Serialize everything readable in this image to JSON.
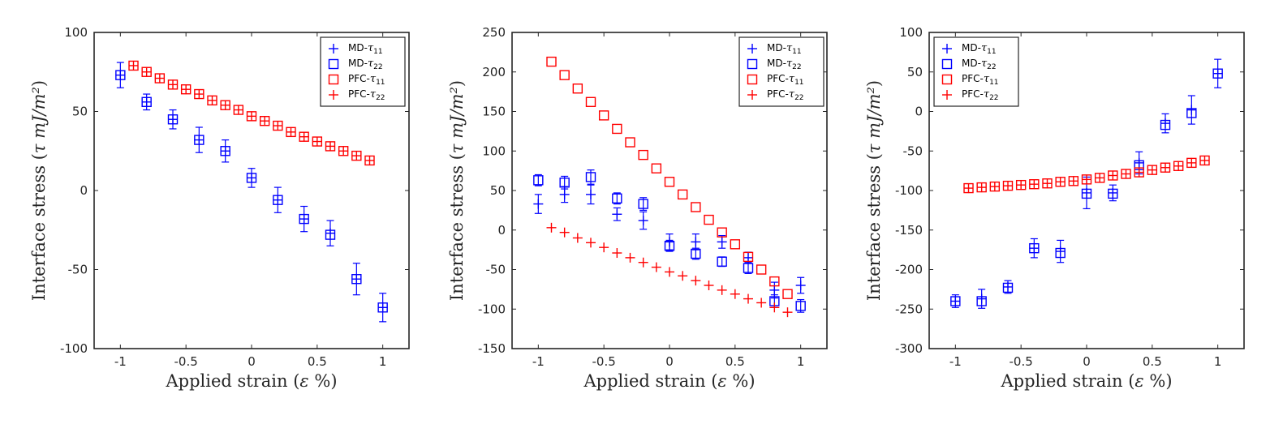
{
  "chart_data": [
    {
      "type": "scatter",
      "panel": "left",
      "xlabel": "Applied strain (ε %)",
      "ylabel": "Interface stress (τ mJ/m²)",
      "xlim": [
        -1.2,
        1.2
      ],
      "ylim": [
        -100,
        100
      ],
      "xticks": [
        -1,
        -0.5,
        0,
        0.5,
        1
      ],
      "xtick_labels": [
        "-1",
        "-0.5",
        "0",
        "0.5",
        "1"
      ],
      "yticks": [
        -100,
        -50,
        0,
        50,
        100
      ],
      "ytick_labels": [
        "-100",
        "-50",
        "0",
        "50",
        "100"
      ],
      "legend": {
        "position": "top-right",
        "entries": [
          {
            "prefix": "MD-",
            "sym": "τ",
            "sub": "11",
            "marker": "plus",
            "color": "#0000ff"
          },
          {
            "prefix": "MD-",
            "sym": "τ",
            "sub": "22",
            "marker": "square",
            "color": "#0000ff"
          },
          {
            "prefix": "PFC-",
            "sym": "τ",
            "sub": "11",
            "marker": "square",
            "color": "#ff0000"
          },
          {
            "prefix": "PFC-",
            "sym": "τ",
            "sub": "22",
            "marker": "plus",
            "color": "#ff0000"
          }
        ]
      },
      "series": [
        {
          "name": "MD-τ11",
          "marker": "plus",
          "color": "#0000ff",
          "x": [
            -1,
            -0.8,
            -0.6,
            -0.4,
            -0.2,
            0,
            0.2,
            0.4,
            0.6,
            0.8,
            1
          ],
          "y": [
            73,
            56,
            45,
            32,
            25,
            8,
            -6,
            -18,
            -27,
            -56,
            -74
          ],
          "err": [
            8,
            5,
            6,
            8,
            7,
            6,
            8,
            8,
            8,
            10,
            9
          ]
        },
        {
          "name": "MD-τ22",
          "marker": "square",
          "color": "#0000ff",
          "x": [
            -1,
            -0.8,
            -0.6,
            -0.4,
            -0.2,
            0,
            0.2,
            0.4,
            0.6,
            0.8,
            1
          ],
          "y": [
            73,
            56,
            45,
            32,
            25,
            8,
            -6,
            -18,
            -28,
            -56,
            -74
          ]
        },
        {
          "name": "PFC-τ11",
          "marker": "square",
          "color": "#ff0000",
          "x": [
            -0.9,
            -0.8,
            -0.7,
            -0.6,
            -0.5,
            -0.4,
            -0.3,
            -0.2,
            -0.1,
            0,
            0.1,
            0.2,
            0.3,
            0.4,
            0.5,
            0.6,
            0.7,
            0.8,
            0.9
          ],
          "y": [
            79,
            75,
            71,
            67,
            64,
            61,
            57,
            54,
            51,
            47,
            44,
            41,
            37,
            34,
            31,
            28,
            25,
            22,
            19
          ]
        },
        {
          "name": "PFC-τ22",
          "marker": "plus",
          "color": "#ff0000",
          "x": [
            -0.9,
            -0.8,
            -0.7,
            -0.6,
            -0.5,
            -0.4,
            -0.3,
            -0.2,
            -0.1,
            0,
            0.1,
            0.2,
            0.3,
            0.4,
            0.5,
            0.6,
            0.7,
            0.8,
            0.9
          ],
          "y": [
            79,
            75,
            71,
            67,
            64,
            61,
            57,
            54,
            51,
            47,
            44,
            41,
            37,
            34,
            31,
            28,
            25,
            22,
            19
          ]
        }
      ]
    },
    {
      "type": "scatter",
      "panel": "middle",
      "xlabel": "Applied strain (ε %)",
      "ylabel": "Interface stress (τ mJ/m²)",
      "xlim": [
        -1.2,
        1.2
      ],
      "ylim": [
        -150,
        250
      ],
      "xticks": [
        -1,
        -0.5,
        0,
        0.5,
        1
      ],
      "xtick_labels": [
        "-1",
        "-0.5",
        "0",
        "0.5",
        "1"
      ],
      "yticks": [
        -150,
        -100,
        -50,
        0,
        50,
        100,
        150,
        200,
        250
      ],
      "ytick_labels": [
        "-150",
        "-100",
        "-50",
        "0",
        "50",
        "100",
        "150",
        "200",
        "250"
      ],
      "legend": {
        "position": "top-right",
        "entries": [
          {
            "prefix": "MD-",
            "sym": "τ",
            "sub": "11",
            "marker": "plus",
            "color": "#0000ff"
          },
          {
            "prefix": "MD-",
            "sym": "τ",
            "sub": "22",
            "marker": "square",
            "color": "#0000ff"
          },
          {
            "prefix": "PFC-",
            "sym": "τ",
            "sub": "11",
            "marker": "square",
            "color": "#ff0000"
          },
          {
            "prefix": "PFC-",
            "sym": "τ",
            "sub": "22",
            "marker": "plus",
            "color": "#ff0000"
          }
        ]
      },
      "series": [
        {
          "name": "MD-τ11",
          "marker": "plus",
          "color": "#0000ff",
          "x": [
            -1,
            -0.8,
            -0.6,
            -0.4,
            -0.2,
            0,
            0.2,
            0.4,
            0.6,
            0.8,
            1
          ],
          "y": [
            33,
            45,
            45,
            20,
            12,
            -15,
            -15,
            -15,
            -35,
            -76,
            -70
          ],
          "err": [
            12,
            10,
            12,
            8,
            11,
            10,
            10,
            8,
            7,
            10,
            10
          ]
        },
        {
          "name": "MD-τ22",
          "marker": "square",
          "color": "#0000ff",
          "x": [
            -1,
            -0.8,
            -0.6,
            -0.4,
            -0.2,
            0,
            0.2,
            0.4,
            0.6,
            0.8,
            1
          ],
          "y": [
            63,
            60,
            67,
            40,
            33,
            -20,
            -30,
            -40,
            -48,
            -90,
            -96
          ],
          "err": [
            7,
            8,
            9,
            7,
            8,
            7,
            7,
            6,
            7,
            8,
            8
          ]
        },
        {
          "name": "PFC-τ11",
          "marker": "square",
          "color": "#ff0000",
          "x": [
            -0.9,
            -0.8,
            -0.7,
            -0.6,
            -0.5,
            -0.4,
            -0.3,
            -0.2,
            -0.1,
            0,
            0.1,
            0.2,
            0.3,
            0.4,
            0.5,
            0.6,
            0.7,
            0.8,
            0.9
          ],
          "y": [
            213,
            196,
            179,
            162,
            145,
            128,
            111,
            95,
            78,
            61,
            45,
            29,
            13,
            -3,
            -18,
            -34,
            -50,
            -65,
            -81
          ]
        },
        {
          "name": "PFC-τ22",
          "marker": "plus",
          "color": "#ff0000",
          "x": [
            -0.9,
            -0.8,
            -0.7,
            -0.6,
            -0.5,
            -0.4,
            -0.3,
            -0.2,
            -0.1,
            0,
            0.1,
            0.2,
            0.3,
            0.4,
            0.5,
            0.6,
            0.7,
            0.8,
            0.9
          ],
          "y": [
            3,
            -3,
            -10,
            -16,
            -22,
            -29,
            -35,
            -41,
            -47,
            -53,
            -58,
            -64,
            -70,
            -76,
            -81,
            -87,
            -92,
            -98,
            -104
          ]
        }
      ]
    },
    {
      "type": "scatter",
      "panel": "right",
      "xlabel": "Applied strain (ε %)",
      "ylabel": "Interface stress (τ mJ/m²)",
      "xlim": [
        -1.2,
        1.2
      ],
      "ylim": [
        -300,
        100
      ],
      "xticks": [
        -1,
        -0.5,
        0,
        0.5,
        1
      ],
      "xtick_labels": [
        "-1",
        "-0.5",
        "0",
        "0.5",
        "1"
      ],
      "yticks": [
        -300,
        -250,
        -200,
        -150,
        -100,
        -50,
        0,
        50,
        100
      ],
      "ytick_labels": [
        "-300",
        "-250",
        "-200",
        "-150",
        "-100",
        "-50",
        "0",
        "50",
        "100"
      ],
      "legend": {
        "position": "top-left",
        "entries": [
          {
            "prefix": "MD-",
            "sym": "τ",
            "sub": "11",
            "marker": "plus",
            "color": "#0000ff"
          },
          {
            "prefix": "MD-",
            "sym": "τ",
            "sub": "22",
            "marker": "square",
            "color": "#0000ff"
          },
          {
            "prefix": "PFC-",
            "sym": "τ",
            "sub": "11",
            "marker": "square",
            "color": "#ff0000"
          },
          {
            "prefix": "PFC-",
            "sym": "τ",
            "sub": "22",
            "marker": "plus",
            "color": "#ff0000"
          }
        ]
      },
      "series": [
        {
          "name": "MD-τ11",
          "marker": "plus",
          "color": "#0000ff",
          "x": [
            -1,
            -0.8,
            -0.6,
            -0.4,
            -0.2,
            0,
            0.2,
            0.4,
            0.6,
            0.8,
            1
          ],
          "y": [
            -240,
            -237,
            -222,
            -173,
            -177,
            -103,
            -103,
            -65,
            -15,
            2,
            48
          ],
          "err": [
            8,
            12,
            8,
            12,
            14,
            20,
            10,
            14,
            12,
            18,
            18
          ]
        },
        {
          "name": "MD-τ22",
          "marker": "square",
          "color": "#0000ff",
          "x": [
            -1,
            -0.8,
            -0.6,
            -0.4,
            -0.2,
            0,
            0.2,
            0.4,
            0.6,
            0.8,
            1
          ],
          "y": [
            -240,
            -240,
            -223,
            -173,
            -179,
            -104,
            -104,
            -68,
            -17,
            -2,
            48
          ]
        },
        {
          "name": "PFC-τ11",
          "marker": "square",
          "color": "#ff0000",
          "x": [
            -0.9,
            -0.8,
            -0.7,
            -0.6,
            -0.5,
            -0.4,
            -0.3,
            -0.2,
            -0.1,
            0,
            0.1,
            0.2,
            0.3,
            0.4,
            0.5,
            0.6,
            0.7,
            0.8,
            0.9
          ],
          "y": [
            -97,
            -96,
            -95,
            -94,
            -93,
            -92,
            -91,
            -89,
            -88,
            -86,
            -84,
            -81,
            -79,
            -77,
            -74,
            -71,
            -69,
            -65,
            -62
          ]
        },
        {
          "name": "PFC-τ22",
          "marker": "plus",
          "color": "#ff0000",
          "x": [
            -0.9,
            -0.8,
            -0.7,
            -0.6,
            -0.5,
            -0.4,
            -0.3,
            -0.2,
            -0.1,
            0,
            0.1,
            0.2,
            0.3,
            0.4,
            0.5,
            0.6,
            0.7,
            0.8,
            0.9
          ],
          "y": [
            -97,
            -96,
            -95,
            -94,
            -93,
            -92,
            -91,
            -89,
            -88,
            -86,
            -84,
            -81,
            -79,
            -77,
            -74,
            -71,
            -69,
            -65,
            -62
          ]
        }
      ]
    }
  ]
}
